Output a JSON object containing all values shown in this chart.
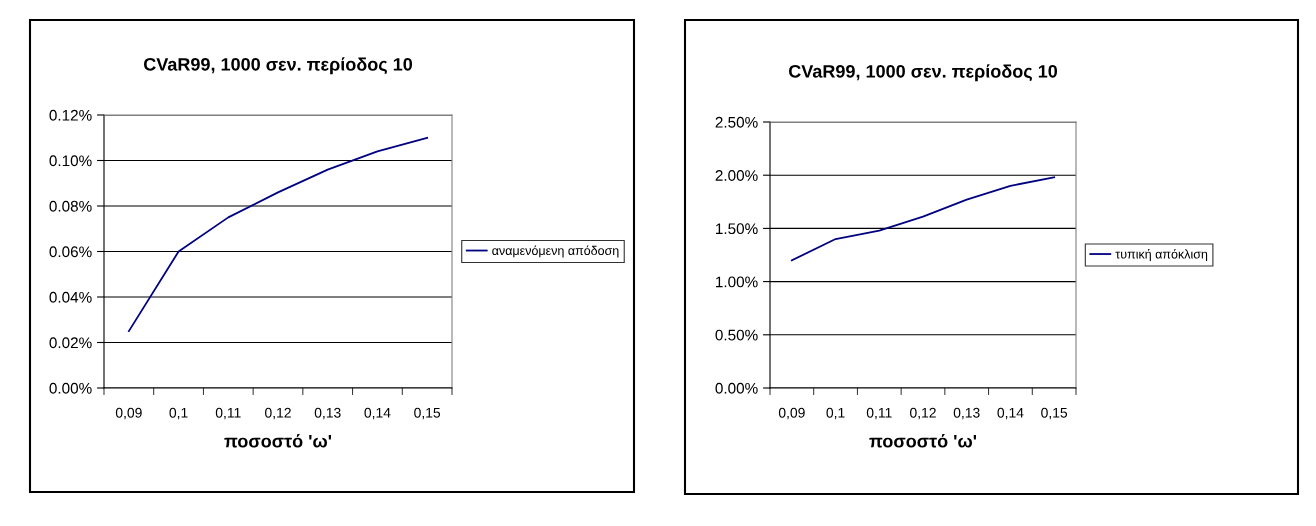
{
  "chart_data": [
    {
      "type": "line",
      "title": "CVaR99, 1000 σεν. περίοδος 10",
      "xlabel": "ποσοστό 'ω'",
      "categories": [
        "0,09",
        "0,1",
        "0,11",
        "0,12",
        "0,13",
        "0,14",
        "0,15"
      ],
      "series": [
        {
          "name": "αναμενόμενη απόδοση",
          "color": "#000080",
          "values": [
            0.025,
            0.06,
            0.075,
            0.086,
            0.096,
            0.104,
            0.11
          ]
        }
      ],
      "ylim": [
        0,
        0.12
      ],
      "yticks": [
        {
          "value": 0,
          "label": "0.00%"
        },
        {
          "value": 0.02,
          "label": "0.02%"
        },
        {
          "value": 0.04,
          "label": "0.04%"
        },
        {
          "value": 0.06,
          "label": "0.06%"
        },
        {
          "value": 0.08,
          "label": "0.08%"
        },
        {
          "value": 0.1,
          "label": "0.10%"
        },
        {
          "value": 0.12,
          "label": "0.12%"
        }
      ],
      "grid": "y",
      "legend": "right",
      "marker": "none",
      "line_style": "solid"
    },
    {
      "type": "line",
      "title": "CVaR99, 1000 σεν. περίοδος 10",
      "xlabel": "ποσοστό 'ω'",
      "categories": [
        "0,09",
        "0,1",
        "0,11",
        "0,12",
        "0,13",
        "0,14",
        "0,15"
      ],
      "series": [
        {
          "name": "τυπική απόκλιση",
          "color": "#000080",
          "values": [
            1.2,
            1.4,
            1.48,
            1.61,
            1.77,
            1.9,
            1.98
          ]
        }
      ],
      "ylim": [
        0,
        2.5
      ],
      "yticks": [
        {
          "value": 0,
          "label": "0.00%"
        },
        {
          "value": 0.5,
          "label": "0.50%"
        },
        {
          "value": 1.0,
          "label": "1.00%"
        },
        {
          "value": 1.5,
          "label": "1.50%"
        },
        {
          "value": 2.0,
          "label": "2.00%"
        },
        {
          "value": 2.5,
          "label": "2.50%"
        }
      ],
      "grid": "y",
      "legend": "right",
      "marker": "none",
      "line_style": "solid"
    }
  ]
}
